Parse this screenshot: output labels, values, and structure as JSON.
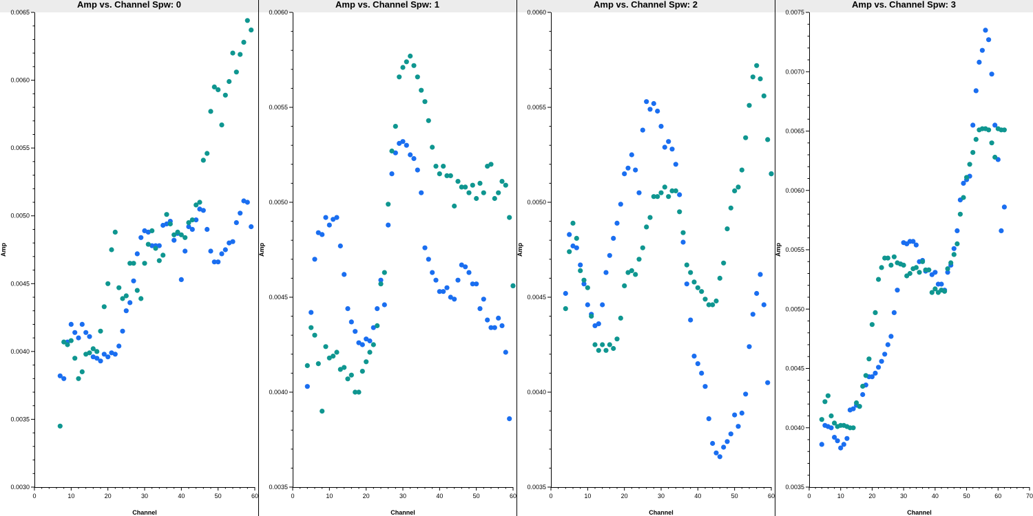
{
  "colors": {
    "series_a": "#1a6ef0",
    "series_b": "#0f9690",
    "title_band": "#ececec"
  },
  "chart_data": [
    {
      "type": "scatter",
      "title": "Amp vs. Channel Spw: 0",
      "xlabel": "Channel",
      "ylabel": "Amp",
      "xlim": [
        0,
        60
      ],
      "ylim": [
        0.003,
        0.0065
      ],
      "xticks": [
        0,
        10,
        20,
        30,
        40,
        50,
        60
      ],
      "yticks": [
        "0.0030",
        "0.0035",
        "0.0040",
        "0.0045",
        "0.0050",
        "0.0055",
        "0.0060",
        "0.0065"
      ],
      "grid": false,
      "series": [
        {
          "color": "series_a",
          "x": [
            7,
            8,
            9,
            10,
            11,
            12,
            13,
            14,
            15,
            16,
            17,
            18,
            19,
            20,
            21,
            22,
            23,
            24,
            25,
            26,
            27,
            28,
            29,
            30,
            31,
            32,
            33,
            34,
            35,
            36,
            37,
            38,
            39,
            40,
            41,
            42,
            43,
            44,
            45,
            46,
            47,
            48,
            49,
            50,
            51,
            52,
            53,
            54,
            55,
            56,
            57,
            58,
            59
          ],
          "y": [
            0.00382,
            0.0038,
            0.00407,
            0.0042,
            0.00414,
            0.0041,
            0.0042,
            0.00414,
            0.00411,
            0.00396,
            0.00395,
            0.00393,
            0.00398,
            0.00396,
            0.00399,
            0.00398,
            0.00404,
            0.00415,
            0.0043,
            0.00436,
            0.00452,
            0.00472,
            0.00484,
            0.00489,
            0.00488,
            0.00478,
            0.00478,
            0.00478,
            0.00493,
            0.00494,
            0.00496,
            0.00482,
            0.00487,
            0.00453,
            0.00474,
            0.00492,
            0.0049,
            0.00497,
            0.00505,
            0.00504,
            0.0049,
            0.00474,
            0.00466,
            0.00466,
            0.00472,
            0.00475,
            0.0048,
            0.00481,
            0.00495,
            0.00502,
            0.00511,
            0.0051,
            0.00492
          ]
        },
        {
          "color": "series_b",
          "x": [
            7,
            8,
            9,
            10,
            11,
            12,
            13,
            14,
            15,
            16,
            17,
            18,
            19,
            20,
            21,
            22,
            23,
            24,
            25,
            26,
            27,
            28,
            29,
            30,
            31,
            32,
            33,
            34,
            35,
            36,
            37,
            38,
            39,
            40,
            41,
            42,
            43,
            44,
            45,
            46,
            47,
            48,
            49,
            50,
            51,
            52,
            53,
            54,
            55,
            56,
            57,
            58,
            59
          ],
          "y": [
            0.00345,
            0.00407,
            0.00405,
            0.00408,
            0.00395,
            0.0038,
            0.00385,
            0.00398,
            0.00399,
            0.00402,
            0.004,
            0.00415,
            0.00433,
            0.0045,
            0.00475,
            0.00488,
            0.00447,
            0.00439,
            0.00441,
            0.00465,
            0.00465,
            0.00445,
            0.00439,
            0.00465,
            0.00479,
            0.00489,
            0.00476,
            0.00467,
            0.00471,
            0.00501,
            0.00494,
            0.00486,
            0.00488,
            0.00486,
            0.00484,
            0.00495,
            0.00497,
            0.00508,
            0.0051,
            0.00541,
            0.00546,
            0.00577,
            0.00595,
            0.00593,
            0.00567,
            0.00589,
            0.00599,
            0.0062,
            0.00606,
            0.00619,
            0.00628,
            0.00644,
            0.00637
          ]
        }
      ]
    },
    {
      "type": "scatter",
      "title": "Amp vs. Channel Spw: 1",
      "xlabel": "Channel",
      "ylabel": "Amp",
      "xlim": [
        0,
        60
      ],
      "ylim": [
        0.0035,
        0.006
      ],
      "xticks": [
        0,
        10,
        20,
        30,
        40,
        50,
        60
      ],
      "yticks": [
        "0.0035",
        "0.0040",
        "0.0045",
        "0.0050",
        "0.0055",
        "0.0060"
      ],
      "grid": false,
      "series": [
        {
          "color": "series_a",
          "x": [
            4,
            5,
            6,
            7,
            8,
            9,
            10,
            11,
            12,
            13,
            14,
            15,
            16,
            17,
            18,
            19,
            20,
            21,
            22,
            23,
            24,
            25,
            26,
            27,
            28,
            29,
            30,
            31,
            32,
            33,
            34,
            35,
            36,
            37,
            38,
            39,
            40,
            41,
            42,
            43,
            44,
            45,
            46,
            47,
            48,
            49,
            50,
            51,
            52,
            53,
            54,
            55,
            56,
            57,
            58,
            59,
            60
          ],
          "y": [
            0.00403,
            0.00442,
            0.0047,
            0.00484,
            0.00483,
            0.00492,
            0.00488,
            0.00491,
            0.00492,
            0.00477,
            0.00462,
            0.00444,
            0.00437,
            0.00432,
            0.00426,
            0.00425,
            0.00428,
            0.00427,
            0.00434,
            0.00444,
            0.00459,
            0.00446,
            0.00488,
            0.00515,
            0.00526,
            0.00531,
            0.00532,
            0.0053,
            0.00525,
            0.00523,
            0.00517,
            0.00505,
            0.00476,
            0.0047,
            0.00463,
            0.00459,
            0.00453,
            0.00453,
            0.00455,
            0.0045,
            0.00449,
            0.00459,
            0.00467,
            0.00466,
            0.00463,
            0.00457,
            0.00457,
            0.00444,
            0.00449,
            0.00438,
            0.00434,
            0.00434,
            0.00439,
            0.00435,
            0.00421,
            0.00386,
            0.00456
          ]
        },
        {
          "color": "series_b",
          "x": [
            4,
            5,
            6,
            7,
            8,
            9,
            10,
            11,
            12,
            13,
            14,
            15,
            16,
            17,
            18,
            19,
            20,
            21,
            22,
            23,
            24,
            25,
            26,
            27,
            28,
            29,
            30,
            31,
            32,
            33,
            34,
            35,
            36,
            37,
            38,
            39,
            40,
            41,
            42,
            43,
            44,
            45,
            46,
            47,
            48,
            49,
            50,
            51,
            52,
            53,
            54,
            55,
            56,
            57,
            58,
            59,
            60
          ],
          "y": [
            0.00414,
            0.00434,
            0.0043,
            0.00415,
            0.0039,
            0.00424,
            0.00418,
            0.00419,
            0.00421,
            0.00412,
            0.00413,
            0.00407,
            0.00409,
            0.004,
            0.004,
            0.00411,
            0.00416,
            0.00421,
            0.00425,
            0.00435,
            0.00457,
            0.00463,
            0.00499,
            0.00527,
            0.0054,
            0.00566,
            0.00571,
            0.00574,
            0.00577,
            0.00572,
            0.00566,
            0.00559,
            0.00553,
            0.00543,
            0.00529,
            0.00519,
            0.00515,
            0.00519,
            0.00514,
            0.00514,
            0.00498,
            0.00511,
            0.00508,
            0.00508,
            0.00505,
            0.00509,
            0.00502,
            0.0051,
            0.00505,
            0.00519,
            0.0052,
            0.00502,
            0.00505,
            0.00511,
            0.00509,
            0.00492,
            0.00456
          ]
        }
      ]
    },
    {
      "type": "scatter",
      "title": "Amp vs. Channel Spw: 2",
      "xlabel": "Channel",
      "ylabel": "Amp",
      "xlim": [
        0,
        60
      ],
      "ylim": [
        0.0035,
        0.006
      ],
      "xticks": [
        0,
        10,
        20,
        30,
        40,
        50,
        60
      ],
      "yticks": [
        "0.0035",
        "0.0040",
        "0.0045",
        "0.0050",
        "0.0055",
        "0.0060"
      ],
      "grid": false,
      "series": [
        {
          "color": "series_a",
          "x": [
            4,
            5,
            6,
            7,
            8,
            9,
            10,
            11,
            12,
            13,
            14,
            15,
            16,
            17,
            18,
            19,
            20,
            21,
            22,
            23,
            24,
            25,
            26,
            27,
            28,
            29,
            30,
            31,
            32,
            33,
            34,
            35,
            36,
            37,
            38,
            39,
            40,
            41,
            42,
            43,
            44,
            45,
            46,
            47,
            48,
            49,
            50,
            51,
            52,
            53,
            54,
            55,
            56,
            57,
            58,
            59,
            60
          ],
          "y": [
            0.00452,
            0.00483,
            0.00477,
            0.00476,
            0.00467,
            0.00457,
            0.00446,
            0.00441,
            0.00435,
            0.00436,
            0.00446,
            0.00463,
            0.00472,
            0.00481,
            0.00489,
            0.00499,
            0.00515,
            0.00518,
            0.00525,
            0.00517,
            0.00505,
            0.00538,
            0.00553,
            0.00549,
            0.00552,
            0.00548,
            0.0054,
            0.00529,
            0.00532,
            0.00528,
            0.0052,
            0.00504,
            0.00479,
            0.00457,
            0.00438,
            0.00419,
            0.00415,
            0.0041,
            0.00403,
            0.00386,
            0.00373,
            0.00368,
            0.00366,
            0.00371,
            0.00374,
            0.00378,
            0.00388,
            0.00382,
            0.00389,
            0.00399,
            0.00424,
            0.00441,
            0.00452,
            0.00462,
            0.00446,
            0.00405,
            0.00515
          ]
        },
        {
          "color": "series_b",
          "x": [
            4,
            5,
            6,
            7,
            8,
            9,
            10,
            11,
            12,
            13,
            14,
            15,
            16,
            17,
            18,
            19,
            20,
            21,
            22,
            23,
            24,
            25,
            26,
            27,
            28,
            29,
            30,
            31,
            32,
            33,
            34,
            35,
            36,
            37,
            38,
            39,
            40,
            41,
            42,
            43,
            44,
            45,
            46,
            47,
            48,
            49,
            50,
            51,
            52,
            53,
            54,
            55,
            56,
            57,
            58,
            59,
            60
          ],
          "y": [
            0.00444,
            0.00474,
            0.00489,
            0.00481,
            0.00464,
            0.00459,
            0.00455,
            0.0044,
            0.00425,
            0.00422,
            0.00425,
            0.00422,
            0.00425,
            0.00423,
            0.00428,
            0.00439,
            0.00456,
            0.00463,
            0.00464,
            0.00462,
            0.0047,
            0.00476,
            0.00487,
            0.00492,
            0.00503,
            0.00503,
            0.00505,
            0.00508,
            0.00503,
            0.00506,
            0.00506,
            0.00495,
            0.00484,
            0.00467,
            0.00463,
            0.00458,
            0.00455,
            0.00453,
            0.00449,
            0.00446,
            0.00446,
            0.00448,
            0.0046,
            0.00468,
            0.00486,
            0.00497,
            0.00506,
            0.00508,
            0.00517,
            0.00534,
            0.00551,
            0.00566,
            0.00572,
            0.00565,
            0.00556,
            0.00533,
            0.00515
          ]
        }
      ]
    },
    {
      "type": "scatter",
      "title": "Amp vs. Channel Spw: 3",
      "xlabel": "Channel",
      "ylabel": "Amp",
      "xlim": [
        0,
        70
      ],
      "ylim": [
        0.0035,
        0.0075
      ],
      "xticks": [
        0,
        10,
        20,
        30,
        40,
        50,
        60,
        70
      ],
      "yticks": [
        "0.0035",
        "0.0040",
        "0.0045",
        "0.0050",
        "0.0055",
        "0.0060",
        "0.0065",
        "0.0070",
        "0.0075"
      ],
      "grid": false,
      "series": [
        {
          "color": "series_a",
          "x": [
            4,
            5,
            6,
            7,
            8,
            9,
            10,
            11,
            12,
            13,
            14,
            15,
            16,
            17,
            18,
            19,
            20,
            21,
            22,
            23,
            24,
            25,
            26,
            27,
            28,
            29,
            30,
            31,
            32,
            33,
            34,
            35,
            36,
            37,
            38,
            39,
            40,
            41,
            42,
            43,
            44,
            45,
            46,
            47,
            48,
            49,
            50,
            51,
            52,
            53,
            54,
            55,
            56,
            57,
            58,
            59,
            60,
            61,
            62
          ],
          "y": [
            0.00386,
            0.00402,
            0.00401,
            0.004,
            0.00392,
            0.00389,
            0.00383,
            0.00386,
            0.00391,
            0.00415,
            0.00416,
            0.00419,
            0.00418,
            0.00428,
            0.00436,
            0.00443,
            0.00443,
            0.00446,
            0.00451,
            0.00456,
            0.00462,
            0.0047,
            0.00477,
            0.00497,
            0.00516,
            0.00538,
            0.00556,
            0.00555,
            0.00557,
            0.00557,
            0.00554,
            0.0054,
            0.00541,
            0.00532,
            0.00533,
            0.00529,
            0.00531,
            0.00521,
            0.00521,
            0.00516,
            0.00531,
            0.00537,
            0.00551,
            0.00566,
            0.00592,
            0.00606,
            0.00609,
            0.00612,
            0.00655,
            0.00684,
            0.00708,
            0.00718,
            0.00735,
            0.00727,
            0.00698,
            0.00655,
            0.00626,
            0.00566,
            0.00586
          ]
        },
        {
          "color": "series_b",
          "x": [
            4,
            5,
            6,
            7,
            8,
            9,
            10,
            11,
            12,
            13,
            14,
            15,
            16,
            17,
            18,
            19,
            20,
            21,
            22,
            23,
            24,
            25,
            26,
            27,
            28,
            29,
            30,
            31,
            32,
            33,
            34,
            35,
            36,
            37,
            38,
            39,
            40,
            41,
            42,
            43,
            44,
            45,
            46,
            47,
            48,
            49,
            50,
            51,
            52,
            53,
            54,
            55,
            56,
            57,
            58,
            59,
            60,
            61,
            62
          ],
          "y": [
            0.00407,
            0.00422,
            0.00427,
            0.0041,
            0.00404,
            0.00401,
            0.00402,
            0.00402,
            0.00401,
            0.004,
            0.004,
            0.00421,
            0.00418,
            0.00435,
            0.00444,
            0.00458,
            0.00487,
            0.00497,
            0.00525,
            0.00535,
            0.00543,
            0.00543,
            0.00537,
            0.00544,
            0.00539,
            0.00538,
            0.00537,
            0.00528,
            0.0053,
            0.00534,
            0.00535,
            0.00531,
            0.0054,
            0.00533,
            0.00533,
            0.00514,
            0.00517,
            0.00514,
            0.00516,
            0.00515,
            0.00534,
            0.00539,
            0.00546,
            0.00555,
            0.0058,
            0.00594,
            0.00611,
            0.00622,
            0.00632,
            0.00643,
            0.00651,
            0.00652,
            0.00652,
            0.00651,
            0.0064,
            0.00628,
            0.00652,
            0.00651,
            0.00651
          ]
        }
      ]
    }
  ]
}
